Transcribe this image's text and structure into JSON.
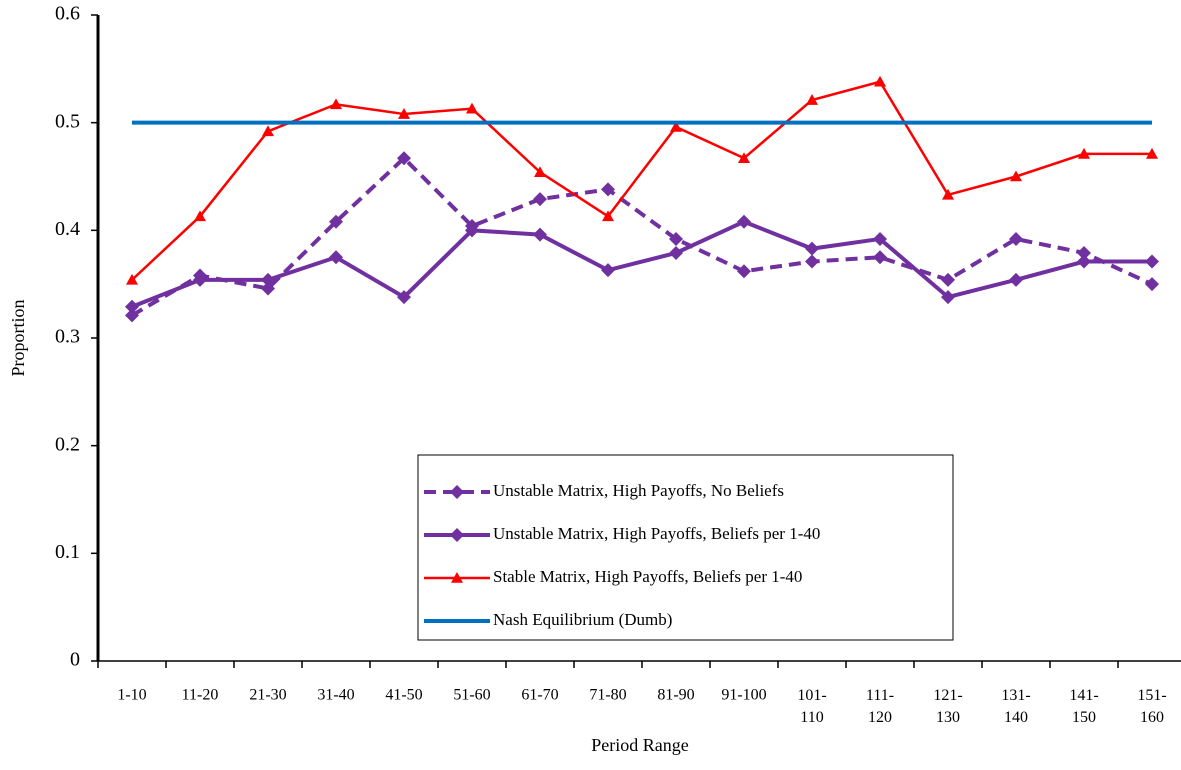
{
  "chart_data": {
    "type": "line",
    "y_label": "Proportion",
    "x_label": "Period Range",
    "categories": [
      "1-10",
      "11-20",
      "21-30",
      "31-40",
      "41-50",
      "51-60",
      "61-70",
      "71-80",
      "81-90",
      "91-100",
      "101-\n110",
      "111-\n120",
      "121-\n130",
      "131-\n140",
      "141-\n150",
      "151-\n160"
    ],
    "ylim": [
      0,
      0.6
    ],
    "yticks": [
      0,
      0.1,
      0.2,
      0.3,
      0.4,
      0.5,
      0.6
    ],
    "series": [
      {
        "name": "Unstable Matrix, High Payoffs, No Beliefs",
        "color": "#7030a0",
        "line_style": "dashed",
        "marker": "diamond",
        "values": [
          0.321,
          0.358,
          0.346,
          0.408,
          0.467,
          0.404,
          0.429,
          0.438,
          0.392,
          0.362,
          0.371,
          0.375,
          0.354,
          0.392,
          0.379,
          0.35
        ]
      },
      {
        "name": "Unstable Matrix, High Payoffs, Beliefs per 1-40",
        "color": "#7030a0",
        "line_style": "solid",
        "marker": "diamond",
        "values": [
          0.329,
          0.354,
          0.354,
          0.375,
          0.338,
          0.4,
          0.396,
          0.363,
          0.379,
          0.408,
          0.383,
          0.392,
          0.338,
          0.354,
          0.371,
          0.371
        ]
      },
      {
        "name": "Stable Matrix, High Payoffs, Beliefs per 1-40",
        "color": "#ff0000",
        "line_style": "thin",
        "marker": "triangle",
        "values": [
          0.354,
          0.413,
          0.492,
          0.517,
          0.508,
          0.513,
          0.454,
          0.413,
          0.496,
          0.467,
          0.521,
          0.538,
          0.433,
          0.45,
          0.471,
          0.471
        ]
      },
      {
        "name": "Nash Equilibrium (Dumb)",
        "color": "#0070c0",
        "line_style": "solid",
        "marker": "none",
        "values": [
          0.5,
          0.5,
          0.5,
          0.5,
          0.5,
          0.5,
          0.5,
          0.5,
          0.5,
          0.5,
          0.5,
          0.5,
          0.5,
          0.5,
          0.5,
          0.5
        ]
      }
    ],
    "legend_position": "lower center"
  }
}
